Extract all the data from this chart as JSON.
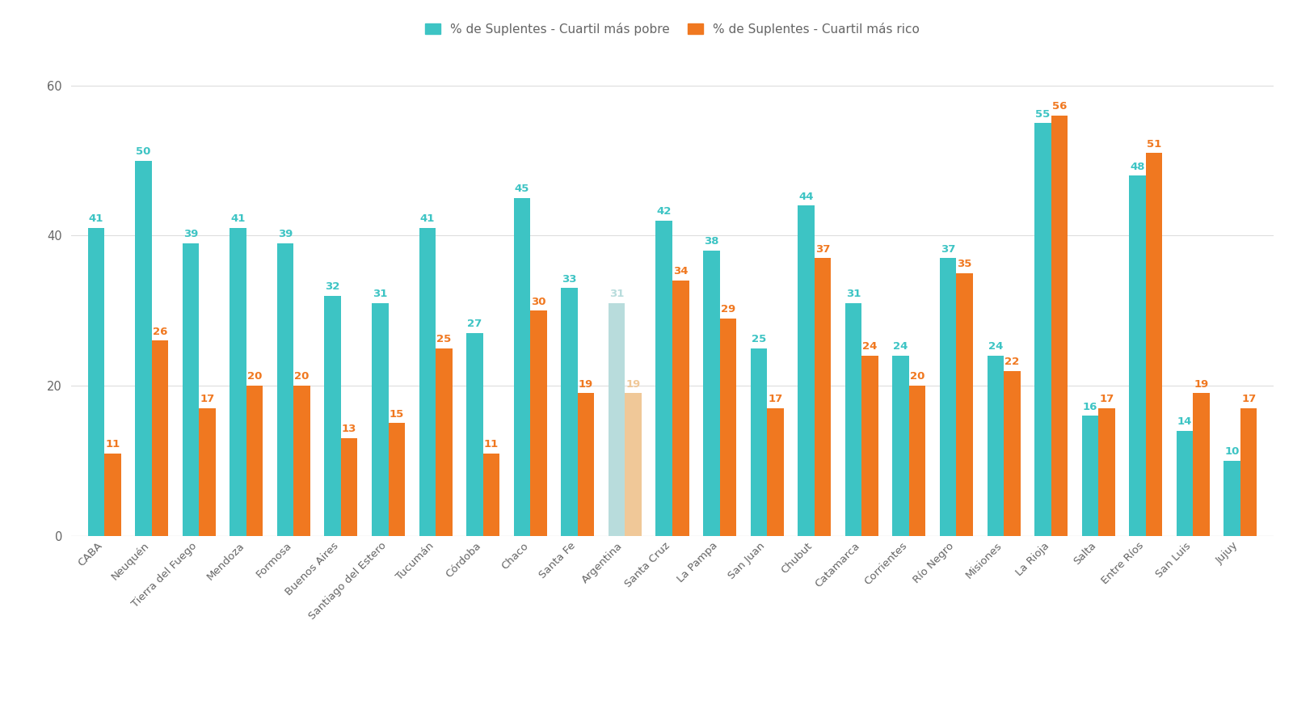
{
  "provinces": [
    "CABA",
    "Neuquén",
    "Tierra del Fuego",
    "Mendoza",
    "Formosa",
    "Buenos Aires",
    "Santiago del Estero",
    "Tucumán",
    "Córdoba",
    "Chaco",
    "Santa Fe",
    "Argentina",
    "Santa Cruz",
    "La Pampa",
    "San Juan",
    "Chubut",
    "Catamarca",
    "Corrientes",
    "Río Negro",
    "Misiones",
    "La Rioja",
    "Salta",
    "Entre Ríos",
    "San Luis",
    "Jujuy"
  ],
  "pobre": [
    41,
    50,
    39,
    41,
    39,
    32,
    31,
    41,
    27,
    45,
    33,
    31,
    42,
    38,
    25,
    44,
    31,
    24,
    37,
    24,
    55,
    16,
    48,
    14,
    10
  ],
  "rico": [
    11,
    26,
    17,
    20,
    20,
    13,
    15,
    25,
    11,
    30,
    19,
    19,
    34,
    29,
    17,
    37,
    24,
    20,
    35,
    22,
    56,
    17,
    51,
    19,
    17
  ],
  "color_pobre": "#3DC4C4",
  "color_rico": "#F07820",
  "color_argentina_pobre": "#B8DCDC",
  "color_argentina_rico": "#F0C898",
  "argentina_index": 11,
  "background_color": "#FFFFFF",
  "label_pobre": "% de Suplentes - Cuartil más pobre",
  "label_rico": "% de Suplentes - Cuartil más rico",
  "ylim": [
    0,
    62
  ],
  "yticks": [
    0,
    20,
    40,
    60
  ],
  "bar_width": 0.35,
  "grid_color": "#DDDDDD",
  "text_color": "#666666",
  "font_size_labels": 9.5,
  "font_size_ticks": 10.5,
  "font_size_legend": 11
}
